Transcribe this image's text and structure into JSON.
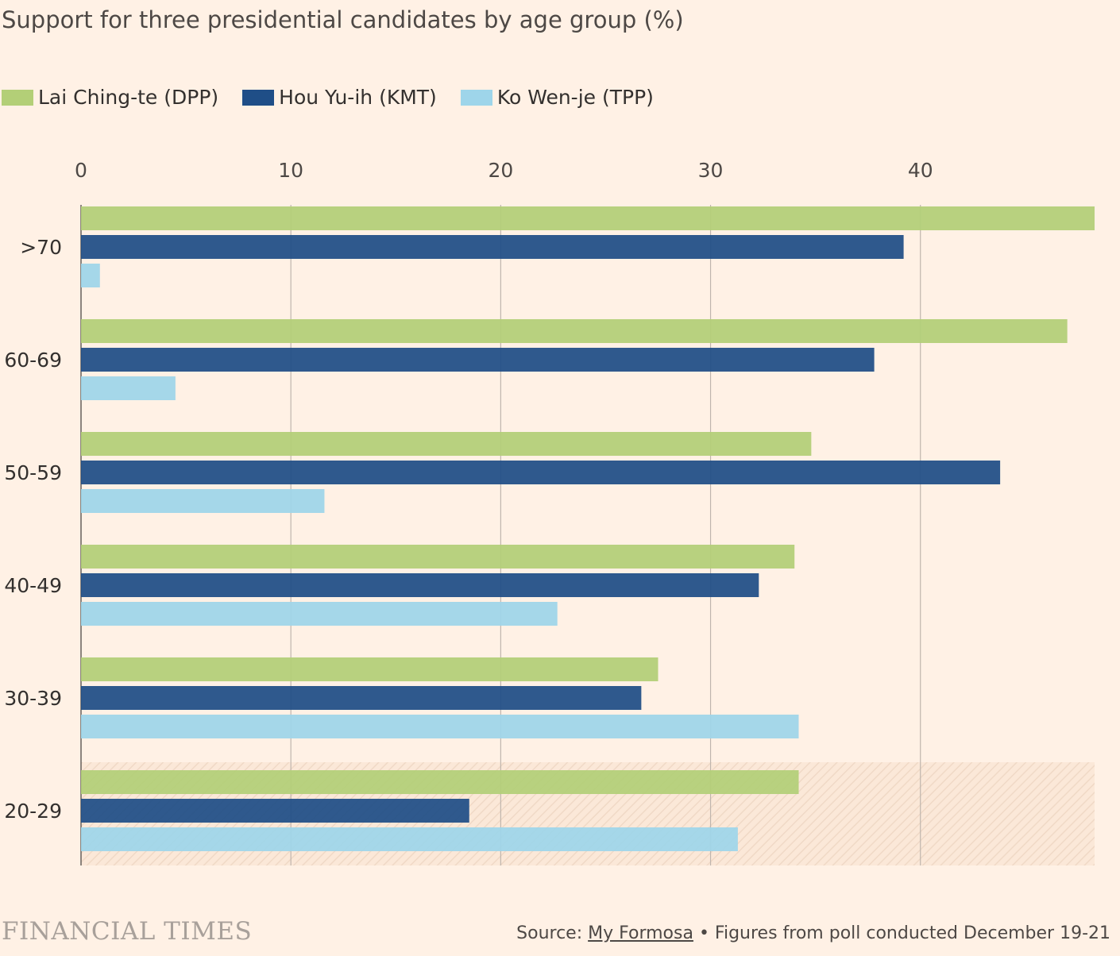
{
  "title": "Support for three presidential candidates by age group (%)",
  "brand": "FINANCIAL TIMES",
  "source": {
    "prefix": "Source: ",
    "link_text": "My Formosa",
    "suffix": " • Figures from poll conducted December 19-21"
  },
  "chart_data": {
    "type": "bar",
    "orientation": "horizontal",
    "title": "Support for three presidential candidates by age group (%)",
    "categories": [
      ">70",
      "60-69",
      "50-59",
      "40-49",
      "30-39",
      "20-29"
    ],
    "series": [
      {
        "name": "Lai Ching-te (DPP)",
        "color": "#b3cf77",
        "values": [
          48.3,
          47.0,
          34.8,
          34.0,
          27.5,
          34.2
        ]
      },
      {
        "name": "Hou Yu-ih (KMT)",
        "color": "#1f4e87",
        "values": [
          39.2,
          37.8,
          43.8,
          32.3,
          26.7,
          18.5
        ]
      },
      {
        "name": "Ko Wen-je (TPP)",
        "color": "#9ed5ea",
        "values": [
          0.9,
          4.5,
          11.6,
          22.7,
          34.2,
          31.3
        ]
      }
    ],
    "xlim": [
      0,
      48.3
    ],
    "xticks": [
      0,
      10,
      20,
      30,
      40
    ],
    "grid": true,
    "legend_position": "top-left",
    "highlighted_category": "20-29",
    "xlabel": "",
    "ylabel": ""
  }
}
